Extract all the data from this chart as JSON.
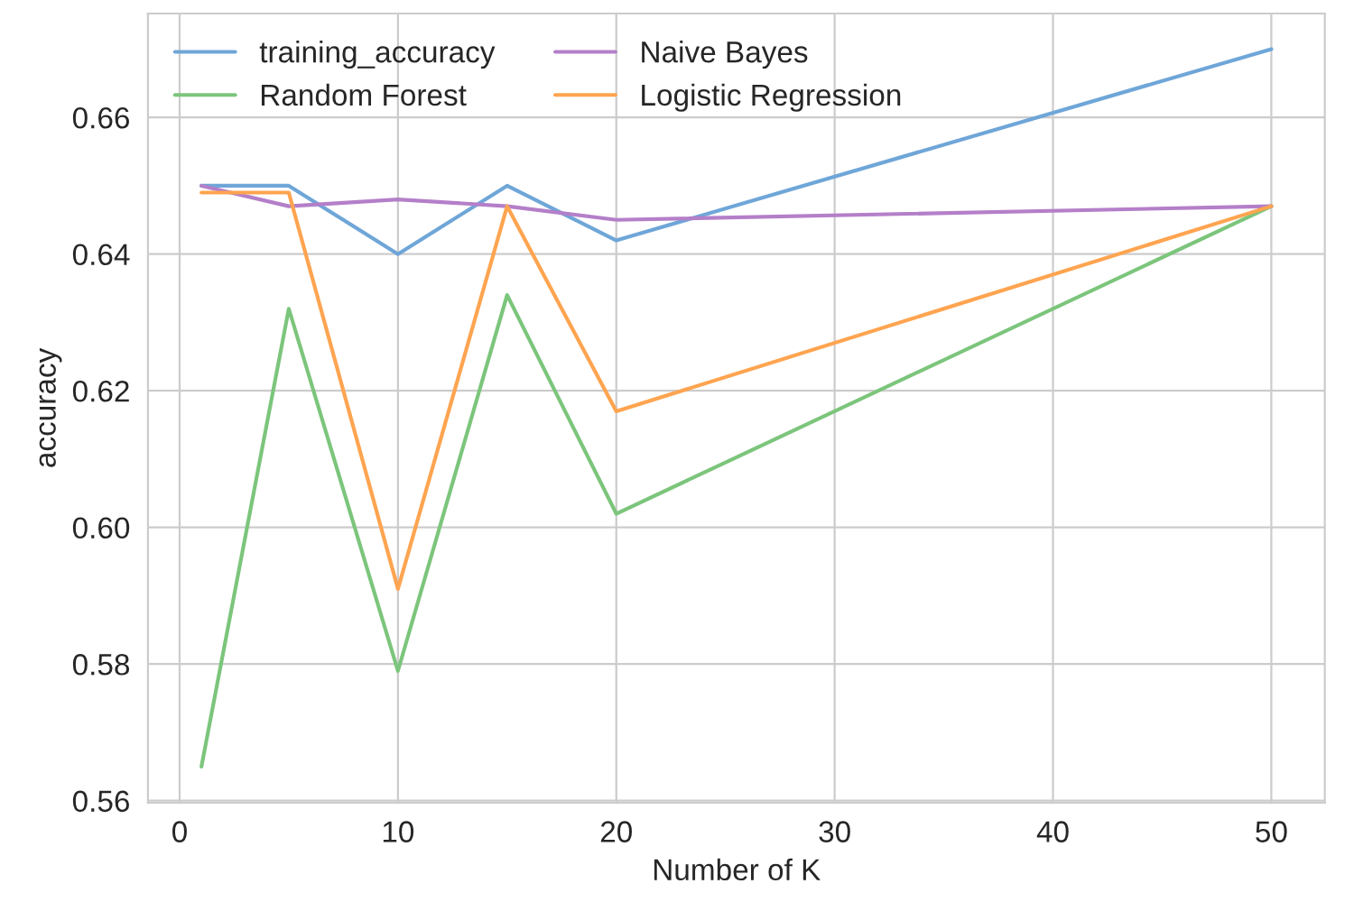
{
  "chart_data": {
    "type": "line",
    "xlabel": "Number of K",
    "ylabel": "accuracy",
    "x": [
      1,
      5,
      10,
      15,
      20,
      50
    ],
    "series": [
      {
        "name": "training_accuracy",
        "color": "#6fa6d8",
        "values": [
          0.65,
          0.65,
          0.64,
          0.65,
          0.642,
          0.67
        ]
      },
      {
        "name": "Random Forest",
        "color": "#7cc57c",
        "values": [
          0.565,
          0.632,
          0.579,
          0.634,
          0.602,
          0.647
        ]
      },
      {
        "name": "Naive Bayes",
        "color": "#b47fc9",
        "values": [
          0.65,
          0.647,
          0.648,
          0.647,
          0.645,
          0.647
        ]
      },
      {
        "name": "Logistic Regression",
        "color": "#ffa450",
        "values": [
          0.649,
          0.649,
          0.591,
          0.647,
          0.617,
          0.647
        ]
      }
    ],
    "xlim": [
      -1.45,
      52.45
    ],
    "ylim": [
      0.5597,
      0.6752
    ],
    "xticks": [
      0,
      10,
      20,
      30,
      40,
      50
    ],
    "yticks": [
      0.56,
      0.58,
      {
        "value": 0.6,
        "label": "0.60"
      },
      0.62,
      0.64,
      0.66
    ],
    "grid": true,
    "legend": "top left",
    "marker": "none",
    "line_style": "solid"
  }
}
